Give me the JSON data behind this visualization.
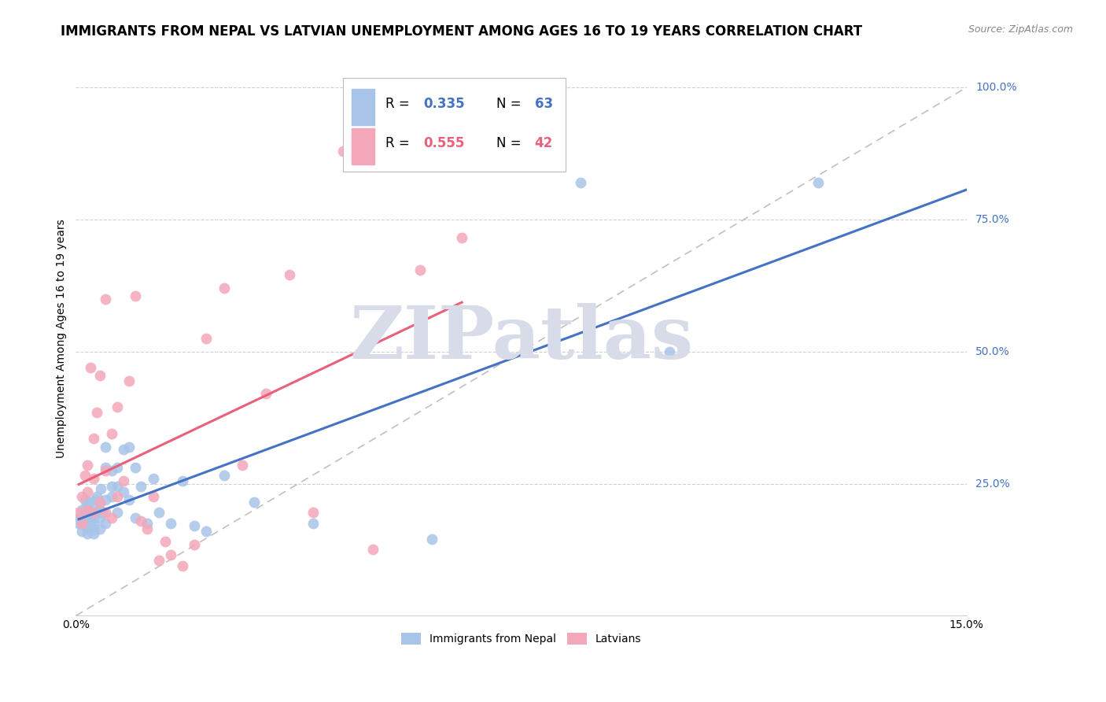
{
  "title": "IMMIGRANTS FROM NEPAL VS LATVIAN UNEMPLOYMENT AMONG AGES 16 TO 19 YEARS CORRELATION CHART",
  "source": "Source: ZipAtlas.com",
  "ylabel": "Unemployment Among Ages 16 to 19 years",
  "legend_label_blue": "Immigrants from Nepal",
  "legend_label_pink": "Latvians",
  "xlim": [
    0.0,
    0.15
  ],
  "ylim": [
    0.0,
    1.05
  ],
  "blue_R": 0.335,
  "blue_N": 63,
  "pink_R": 0.555,
  "pink_N": 42,
  "blue_color": "#a8c4e8",
  "pink_color": "#f4a7b9",
  "blue_line_color": "#4472c4",
  "pink_line_color": "#e8607a",
  "diag_line_color": "#c0c0c0",
  "grid_color": "#d0d0d0",
  "right_axis_color": "#4472c4",
  "title_fontsize": 12,
  "label_fontsize": 10,
  "tick_fontsize": 10,
  "source_fontsize": 9,
  "blue_points_x": [
    0.0005,
    0.0008,
    0.001,
    0.001,
    0.001,
    0.0012,
    0.0015,
    0.0015,
    0.0018,
    0.002,
    0.002,
    0.002,
    0.002,
    0.002,
    0.0022,
    0.0025,
    0.0025,
    0.003,
    0.003,
    0.003,
    0.003,
    0.003,
    0.003,
    0.0032,
    0.0035,
    0.0035,
    0.004,
    0.004,
    0.004,
    0.004,
    0.0042,
    0.0045,
    0.005,
    0.005,
    0.005,
    0.005,
    0.006,
    0.006,
    0.006,
    0.007,
    0.007,
    0.007,
    0.008,
    0.008,
    0.009,
    0.009,
    0.01,
    0.01,
    0.011,
    0.012,
    0.013,
    0.014,
    0.016,
    0.018,
    0.02,
    0.022,
    0.025,
    0.03,
    0.04,
    0.06,
    0.085,
    0.1,
    0.125
  ],
  "blue_points_y": [
    0.175,
    0.185,
    0.2,
    0.175,
    0.16,
    0.19,
    0.22,
    0.175,
    0.21,
    0.195,
    0.175,
    0.185,
    0.165,
    0.155,
    0.215,
    0.19,
    0.175,
    0.2,
    0.195,
    0.185,
    0.175,
    0.165,
    0.155,
    0.22,
    0.225,
    0.195,
    0.2,
    0.215,
    0.185,
    0.165,
    0.24,
    0.195,
    0.32,
    0.28,
    0.22,
    0.175,
    0.275,
    0.245,
    0.225,
    0.28,
    0.245,
    0.195,
    0.315,
    0.235,
    0.32,
    0.22,
    0.28,
    0.185,
    0.245,
    0.175,
    0.26,
    0.195,
    0.175,
    0.255,
    0.17,
    0.16,
    0.265,
    0.215,
    0.175,
    0.145,
    0.82,
    0.5,
    0.82
  ],
  "pink_points_x": [
    0.0005,
    0.001,
    0.001,
    0.0015,
    0.002,
    0.002,
    0.002,
    0.0025,
    0.003,
    0.003,
    0.003,
    0.0035,
    0.004,
    0.004,
    0.005,
    0.005,
    0.005,
    0.006,
    0.006,
    0.007,
    0.007,
    0.008,
    0.009,
    0.01,
    0.011,
    0.012,
    0.013,
    0.014,
    0.015,
    0.016,
    0.018,
    0.02,
    0.022,
    0.025,
    0.028,
    0.032,
    0.036,
    0.04,
    0.045,
    0.05,
    0.058,
    0.065
  ],
  "pink_points_y": [
    0.195,
    0.175,
    0.225,
    0.265,
    0.2,
    0.285,
    0.235,
    0.47,
    0.195,
    0.335,
    0.26,
    0.385,
    0.215,
    0.455,
    0.195,
    0.275,
    0.6,
    0.345,
    0.185,
    0.225,
    0.395,
    0.255,
    0.445,
    0.605,
    0.18,
    0.165,
    0.225,
    0.105,
    0.14,
    0.115,
    0.095,
    0.135,
    0.525,
    0.62,
    0.285,
    0.42,
    0.645,
    0.195,
    0.88,
    0.125,
    0.655,
    0.715
  ],
  "watermark_text": "ZIPatlas",
  "watermark_color": "#d8dce8",
  "yaxis_ticks": [
    0.25,
    0.5,
    0.75,
    1.0
  ],
  "yaxis_labels": [
    "25.0%",
    "50.0%",
    "75.0%",
    "100.0%"
  ]
}
